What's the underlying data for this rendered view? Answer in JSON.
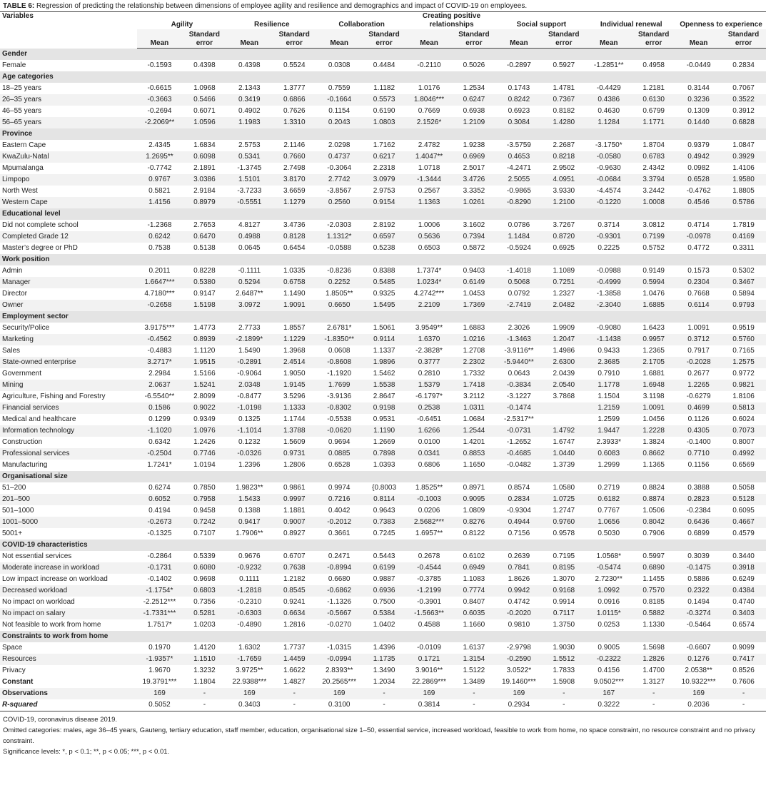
{
  "table": {
    "label": "TABLE 6:",
    "title": "Regression of predicting the relationship between dimensions of employee agility and resilience and demographics and impact of COVID-19 on employees.",
    "variables_header": "Variables",
    "groups": [
      "Agility",
      "Resilience",
      "Collaboration",
      "Creating positive relationships",
      "Social support",
      "Individual renewal",
      "Openness to experience"
    ],
    "subcolumns": [
      "Mean",
      "Standard error"
    ],
    "sections": [
      {
        "title": "Gender",
        "rows": [
          [
            "Female",
            "-0.1593",
            "0.4398",
            "0.4398",
            "0.5524",
            "0.0308",
            "0.4484",
            "-0.2110",
            "0.5026",
            "-0.2897",
            "0.5927",
            "-1.2851**",
            "0.4958",
            "-0.0449",
            "0.2834"
          ]
        ]
      },
      {
        "title": "Age categories",
        "rows": [
          [
            "18–25 years",
            "-0.6615",
            "1.0968",
            "2.1343",
            "1.3777",
            "0.7559",
            "1.1182",
            "1.0176",
            "1.2534",
            "0.1743",
            "1.4781",
            "-0.4429",
            "1.2181",
            "0.3144",
            "0.7067"
          ],
          [
            "26–35 years",
            "-0.3663",
            "0.5466",
            "0.3419",
            "0.6866",
            "-0.1664",
            "0.5573",
            "1.8046***",
            "0.6247",
            "0.8242",
            "0.7367",
            "0.4386",
            "0.6130",
            "0.3236",
            "0.3522"
          ],
          [
            "46–55 years",
            "-0.2694",
            "0.6071",
            "0.4902",
            "0.7626",
            "0.1154",
            "0.6190",
            "0.7669",
            "0.6938",
            "0.6923",
            "0.8182",
            "0.4630",
            "0.6799",
            "0.1309",
            "0.3912"
          ],
          [
            "56–65 years",
            "-2.2069**",
            "1.0596",
            "1.1983",
            "1.3310",
            "0.2043",
            "1.0803",
            "2.1526*",
            "1.2109",
            "0.3084",
            "1.4280",
            "1.1284",
            "1.1771",
            "0.1440",
            "0.6828"
          ]
        ]
      },
      {
        "title": "Province",
        "rows": [
          [
            "Eastern Cape",
            "2.4345",
            "1.6834",
            "2.5753",
            "2.1146",
            "2.0298",
            "1.7162",
            "2.4782",
            "1.9238",
            "-3.5759",
            "2.2687",
            "-3.1750*",
            "1.8704",
            "0.9379",
            "1.0847"
          ],
          [
            "KwaZulu-Natal",
            "1.2695**",
            "0.6098",
            "0.5341",
            "0.7660",
            "0.4737",
            "0.6217",
            "1.4047**",
            "0.6969",
            "0.4653",
            "0.8218",
            "-0.0580",
            "0.6783",
            "0.4942",
            "0.3929"
          ],
          [
            "Mpumalanga",
            "-0.7742",
            "2.1891",
            "-1.3745",
            "2.7498",
            "-0.3064",
            "2.2318",
            "1.0718",
            "2.5017",
            "-4.2471",
            "2.9502",
            "-0.9630",
            "2.4342",
            "0.0982",
            "1.4106"
          ],
          [
            "Limpopo",
            "0.9767",
            "3.0386",
            "1.5101",
            "3.8170",
            "2.7742",
            "3.0979",
            "-1.3444",
            "3.4726",
            "2.5055",
            "4.0951",
            "-0.0684",
            "3.3794",
            "0.6528",
            "1.9580"
          ],
          [
            "North West",
            "0.5821",
            "2.9184",
            "-3.7233",
            "3.6659",
            "-3.8567",
            "2.9753",
            "0.2567",
            "3.3352",
            "-0.9865",
            "3.9330",
            "-4.4574",
            "3.2442",
            "-0.4762",
            "1.8805"
          ],
          [
            "Western Cape",
            "1.4156",
            "0.8979",
            "-0.5551",
            "1.1279",
            "0.2560",
            "0.9154",
            "1.1363",
            "1.0261",
            "-0.8290",
            "1.2100",
            "-0.1220",
            "1.0008",
            "0.4546",
            "0.5786"
          ]
        ]
      },
      {
        "title": "Educational level",
        "rows": [
          [
            "Did not complete school",
            "-1.2368",
            "2.7653",
            "4.8127",
            "3.4736",
            "-2.0303",
            "2.8192",
            "1.0006",
            "3.1602",
            "0.0786",
            "3.7267",
            "0.3714",
            "3.0812",
            "0.4714",
            "1.7819"
          ],
          [
            "Completed Grade 12",
            "0.6242",
            "0.6470",
            "0.4988",
            "0.8128",
            "1.1312*",
            "0.6597",
            "0.5636",
            "0.7394",
            "1.1484",
            "0.8720",
            "-0.9301",
            "0.7199",
            "-0.0978",
            "0.4169"
          ],
          [
            "Master’s degree or PhD",
            "0.7538",
            "0.5138",
            "0.0645",
            "0.6454",
            "-0.0588",
            "0.5238",
            "0.6503",
            "0.5872",
            "-0.5924",
            "0.6925",
            "0.2225",
            "0.5752",
            "0.4772",
            "0.3311"
          ]
        ]
      },
      {
        "title": "Work position",
        "rows": [
          [
            "Admin",
            "0.2011",
            "0.8228",
            "-0.1111",
            "1.0335",
            "-0.8236",
            "0.8388",
            "1.7374*",
            "0.9403",
            "-1.4018",
            "1.1089",
            "-0.0988",
            "0.9149",
            "0.1573",
            "0.5302"
          ],
          [
            "Manager",
            "1.6647***",
            "0.5380",
            "0.5294",
            "0.6758",
            "0.2252",
            "0.5485",
            "1.0234*",
            "0.6149",
            "0.5068",
            "0.7251",
            "-0.4999",
            "0.5994",
            "0.2304",
            "0.3467"
          ],
          [
            "Director",
            "4.7180***",
            "0.9147",
            "2.6487**",
            "1.1490",
            "1.8505**",
            "0.9325",
            "4.2742***",
            "1.0453",
            "0.0792",
            "1.2327",
            "-1.3858",
            "1.0476",
            "0.7668",
            "0.5894"
          ],
          [
            "Owner",
            "-0.2658",
            "1.5198",
            "3.0972",
            "1.9091",
            "0.6650",
            "1.5495",
            "2.2109",
            "1.7369",
            "-2.7419",
            "2.0482",
            "-2.3040",
            "1.6885",
            "0.6114",
            "0.9793"
          ]
        ]
      },
      {
        "title": "Employment sector",
        "rows": [
          [
            "Security/Police",
            "3.9175***",
            "1.4773",
            "2.7733",
            "1.8557",
            "2.6781*",
            "1.5061",
            "3.9549**",
            "1.6883",
            "2.3026",
            "1.9909",
            "-0.9080",
            "1.6423",
            "1.0091",
            "0.9519"
          ],
          [
            "Marketing",
            "-0.4562",
            "0.8939",
            "-2.1899*",
            "1.1229",
            "-1.8350**",
            "0.9114",
            "1.6370",
            "1.0216",
            "-1.3463",
            "1.2047",
            "-1.1438",
            "0.9957",
            "0.3712",
            "0.5760"
          ],
          [
            "Sales",
            "-0.4883",
            "1.1120",
            "1.5490",
            "1.3968",
            "0.0608",
            "1.1337",
            "-2.3828*",
            "1.2708",
            "-3.9116**",
            "1.4986",
            "0.9433",
            "1.2365",
            "0.7917",
            "0.7165"
          ],
          [
            "State-owned enterprise",
            "3.2717*",
            "1.9515",
            "-0.2891",
            "2.4514",
            "-0.8608",
            "1.9896",
            "0.3777",
            "2.2302",
            "-5.9440**",
            "2.6300",
            "2.3685",
            "2.1705",
            "-0.2028",
            "1.2575"
          ],
          [
            "Government",
            "2.2984",
            "1.5166",
            "-0.9064",
            "1.9050",
            "-1.1920",
            "1.5462",
            "0.2810",
            "1.7332",
            "0.0643",
            "2.0439",
            "0.7910",
            "1.6881",
            "0.2677",
            "0.9772"
          ],
          [
            "Mining",
            "2.0637",
            "1.5241",
            "2.0348",
            "1.9145",
            "1.7699",
            "1.5538",
            "1.5379",
            "1.7418",
            "-0.3834",
            "2.0540",
            "1.1778",
            "1.6948",
            "1.2265",
            "0.9821"
          ],
          [
            "Agriculture, Fishing and Forestry",
            "-6.5540**",
            "2.8099",
            "-0.8477",
            "3.5296",
            "-3.9136",
            "2.8647",
            "-6.1797*",
            "3.2112",
            "-3.1227",
            "3.7868",
            "1.1504",
            "3.1198",
            "-0.6279",
            "1.8106"
          ],
          [
            "Financial services",
            "0.1586",
            "0.9022",
            "-1.0198",
            "1.1333",
            "-0.8302",
            "0.9198",
            "0.2538",
            "1.0311",
            "-0.1474",
            null,
            "1.2159",
            "1.0091",
            "0.4699",
            "0.5813"
          ],
          [
            "Medical and healthcare",
            "0.1299",
            "0.9349",
            "0.1325",
            "1.1744",
            "-0.5538",
            "0.9531",
            "-0.6451",
            "1.0684",
            "-2.5317**",
            null,
            "1.2599",
            "1.0456",
            "0.1126",
            "0.6024"
          ],
          [
            "Information technology",
            "-1.1020",
            "1.0976",
            "-1.1014",
            "1.3788",
            "-0.0620",
            "1.1190",
            "1.6266",
            "1.2544",
            "-0.0731",
            "1.4792",
            "1.9447",
            "1.2228",
            "0.4305",
            "0.7073"
          ],
          [
            "Construction",
            "0.6342",
            "1.2426",
            "0.1232",
            "1.5609",
            "0.9694",
            "1.2669",
            "0.0100",
            "1.4201",
            "-1.2652",
            "1.6747",
            "2.3933*",
            "1.3824",
            "-0.1400",
            "0.8007"
          ],
          [
            "Professional services",
            "-0.2504",
            "0.7746",
            "-0.0326",
            "0.9731",
            "0.0885",
            "0.7898",
            "0.0341",
            "0.8853",
            "-0.4685",
            "1.0440",
            "0.6083",
            "0.8662",
            "0.7710",
            "0.4992"
          ],
          [
            "Manufacturing",
            "1.7241*",
            "1.0194",
            "1.2396",
            "1.2806",
            "0.6528",
            "1.0393",
            "0.6806",
            "1.1650",
            "-0.0482",
            "1.3739",
            "1.2999",
            "1.1365",
            "0.1156",
            "0.6569"
          ]
        ]
      },
      {
        "title": "Organisational size",
        "rows": [
          [
            "51–200",
            "0.6274",
            "0.7850",
            "1.9823**",
            "0.9861",
            "0.9974",
            "{0.8003",
            "1.8525**",
            "0.8971",
            "0.8574",
            "1.0580",
            "0.2719",
            "0.8824",
            "0.3888",
            "0.5058"
          ],
          [
            "201–500",
            "0.6052",
            "0.7958",
            "1.5433",
            "0.9997",
            "0.7216",
            "0.8114",
            "-0.1003",
            "0.9095",
            "0.2834",
            "1.0725",
            "0.6182",
            "0.8874",
            "0.2823",
            "0.5128"
          ],
          [
            "501–1000",
            "0.4194",
            "0.9458",
            "0.1388",
            "1.1881",
            "0.4042",
            "0.9643",
            "0.0206",
            "1.0809",
            "-0.9304",
            "1.2747",
            "0.7767",
            "1.0506",
            "-0.2384",
            "0.6095"
          ],
          [
            "1001–5000",
            "-0.2673",
            "0.7242",
            "0.9417",
            "0.9007",
            "-0.2012",
            "0.7383",
            "2.5682***",
            "0.8276",
            "0.4944",
            "0.9760",
            "1.0656",
            "0.8042",
            "0.6436",
            "0.4667"
          ],
          [
            "5001+",
            "-0.1325",
            "0.7107",
            "1.7906**",
            "0.8927",
            "0.3661",
            "0.7245",
            "1.6957**",
            "0.8122",
            "0.7156",
            "0.9578",
            "0.5030",
            "0.7906",
            "0.6899",
            "0.4579"
          ]
        ]
      },
      {
        "title": "COVID-19 characteristics",
        "rows": [
          [
            "Not essential services",
            "-0.2864",
            "0.5339",
            "0.9676",
            "0.6707",
            "0.2471",
            "0.5443",
            "0.2678",
            "0.6102",
            "0.2639",
            "0.7195",
            "1.0568*",
            "0.5997",
            "0.3039",
            "0.3440"
          ],
          [
            "Moderate increase in workload",
            "-0.1731",
            "0.6080",
            "-0.9232",
            "0.7638",
            "-0.8994",
            "0.6199",
            "-0.4544",
            "0.6949",
            "0.7841",
            "0.8195",
            "-0.5474",
            "0.6890",
            "-0.1475",
            "0.3918"
          ],
          [
            "Low impact increase on workload",
            "-0.1402",
            "0.9698",
            "0.1111",
            "1.2182",
            "0.6680",
            "0.9887",
            "-0.3785",
            "1.1083",
            "1.8626",
            "1.3070",
            "2.7230**",
            "1.1455",
            "0.5886",
            "0.6249"
          ],
          [
            "Decreased workload",
            "-1.1754*",
            "0.6803",
            "-1.2818",
            "0.8545",
            "-0.6862",
            "0.6936",
            "-1.2199",
            "0.7774",
            "0.9942",
            "0.9168",
            "1.0992",
            "0.7570",
            "0.2322",
            "0.4384"
          ],
          [
            "No impact on workload",
            "-2.2512***",
            "0.7356",
            "-0.2310",
            "0.9241",
            "-1.1326",
            "0.7500",
            "-0.3901",
            "0.8407",
            "0.4742",
            "0.9914",
            "0.0916",
            "0.8185",
            "0.1494",
            "0.4740"
          ],
          [
            "No impact on salary",
            "-1.7331***",
            "0.5281",
            "-0.6303",
            "0.6634",
            "-0.5667",
            "0.5384",
            "-1.5663**",
            "0.6035",
            "-0.2020",
            "0.7117",
            "1.0115*",
            "0.5882",
            "-0.3274",
            "0.3403"
          ],
          [
            "Not feasible to work from home",
            "1.7517*",
            "1.0203",
            "-0.4890",
            "1.2816",
            "-0.0270",
            "1.0402",
            "0.4588",
            "1.1660",
            "0.9810",
            "1.3750",
            "0.0253",
            "1.1330",
            "-0.5464",
            "0.6574"
          ]
        ]
      },
      {
        "title": "Constraints to work from home",
        "rows": [
          [
            "Space",
            "0.1970",
            "1.4120",
            "1.6302",
            "1.7737",
            "-1.0315",
            "1.4396",
            "-0.0109",
            "1.6137",
            "-2.9798",
            "1.9030",
            "0.9005",
            "1.5698",
            "-0.6607",
            "0.9099"
          ],
          [
            "Resources",
            "-1.9357*",
            "1.1510",
            "-1.7659",
            "1.4459",
            "-0.0994",
            "1.1735",
            "0.1721",
            "1.3154",
            "-0.2590",
            "1.5512",
            "-0.2322",
            "1.2826",
            "0.1276",
            "0.7417"
          ],
          [
            "Privacy",
            "1.9670",
            "1.3232",
            "3.9725**",
            "1.6622",
            "2.8393**",
            "1.3490",
            "3.9016**",
            "1.5122",
            "3.0522*",
            "1.7833",
            "0.4156",
            "1.4700",
            "2.0538**",
            "0.8526"
          ]
        ]
      },
      {
        "rows": [
          [
            "Constant",
            "19.3791***",
            "1.1804",
            "22.9388***",
            "1.4827",
            "20.2565***",
            "1.2034",
            "22.2869***",
            "1.3489",
            "19.1460***",
            "1.5908",
            "9.0502***",
            "1.3127",
            "10.9322***",
            "0.7606"
          ],
          [
            "Observations",
            "169",
            "-",
            "169",
            "-",
            "169",
            "-",
            "169",
            "-",
            "169",
            "-",
            "167",
            "-",
            "169",
            "-"
          ],
          [
            "R-squared",
            "0.5052",
            "-",
            "0.3403",
            "-",
            "0.3100",
            "-",
            "0.3814",
            "-",
            "0.2934",
            "-",
            "0.3222",
            "-",
            "0.2036",
            "-"
          ]
        ]
      }
    ],
    "notes": [
      "COVID-19, coronavirus disease 2019.",
      "Omitted categories: males, age 36–45 years, Gauteng, tertiary education, staff member, education, organisational size 1–50, essential service, increased workload, feasible to work from home, no space constraint, no resource constraint and no privacy constraint.",
      "Significance levels: *, p < 0.1; **, p < 0.05; ***, p < 0.01."
    ]
  }
}
